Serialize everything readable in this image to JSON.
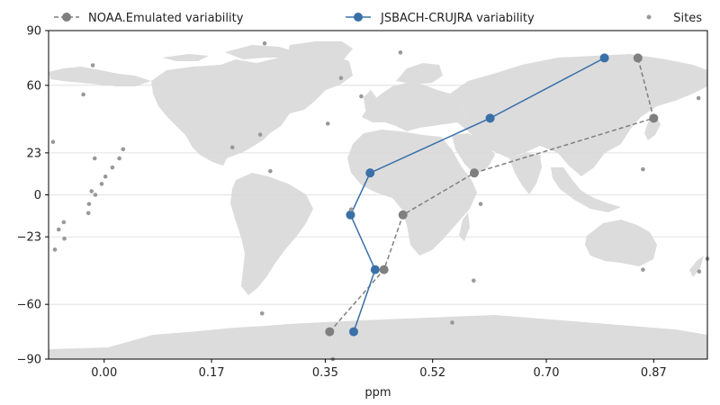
{
  "chart_data": {
    "type": "line",
    "xlabel": "ppm",
    "ylabel": "",
    "xlim": [
      -0.088,
      0.955
    ],
    "ylim": [
      -90,
      90
    ],
    "x_ticks": [
      0.0,
      0.17,
      0.35,
      0.52,
      0.7,
      0.87
    ],
    "x_tick_labels": [
      "0.00",
      "0.17",
      "0.35",
      "0.52",
      "0.70",
      "0.87"
    ],
    "y_ticks": [
      90,
      60,
      23,
      0,
      -23,
      -60,
      -90
    ],
    "y_tick_labels": [
      "90",
      "60",
      "23",
      "0",
      "−23",
      "−60",
      "−90"
    ],
    "grid": "horizontal",
    "legend_position": "top",
    "background": "world-map",
    "series": [
      {
        "name": "NOAA.Emulated variability",
        "style": "dashed",
        "color": "#7f7f7f",
        "points": [
          {
            "x": 0.357,
            "y": -75
          },
          {
            "x": 0.443,
            "y": -41
          },
          {
            "x": 0.473,
            "y": -11
          },
          {
            "x": 0.586,
            "y": 12
          },
          {
            "x": 0.87,
            "y": 42
          },
          {
            "x": 0.845,
            "y": 75
          }
        ]
      },
      {
        "name": "JSBACH-CRUJRA variability",
        "style": "solid",
        "color": "#3a70a8",
        "points": [
          {
            "x": 0.395,
            "y": -75
          },
          {
            "x": 0.429,
            "y": -41
          },
          {
            "x": 0.39,
            "y": -11
          },
          {
            "x": 0.421,
            "y": 12
          },
          {
            "x": 0.611,
            "y": 42
          },
          {
            "x": 0.792,
            "y": 75
          }
        ]
      },
      {
        "name": "Sites",
        "style": "scatter",
        "color": "#999999",
        "points": [
          {
            "x": -0.081,
            "y": 29
          },
          {
            "x": -0.078,
            "y": -30
          },
          {
            "x": -0.072,
            "y": -19
          },
          {
            "x": -0.064,
            "y": -15
          },
          {
            "x": -0.063,
            "y": -24
          },
          {
            "x": -0.033,
            "y": 55
          },
          {
            "x": -0.025,
            "y": -10
          },
          {
            "x": -0.024,
            "y": -5
          },
          {
            "x": -0.02,
            "y": 2
          },
          {
            "x": -0.018,
            "y": 71
          },
          {
            "x": -0.015,
            "y": 20
          },
          {
            "x": -0.014,
            "y": 0
          },
          {
            "x": -0.004,
            "y": 6
          },
          {
            "x": 0.002,
            "y": 10
          },
          {
            "x": 0.013,
            "y": 15
          },
          {
            "x": 0.024,
            "y": 20
          },
          {
            "x": 0.03,
            "y": 25
          },
          {
            "x": 0.203,
            "y": 26
          },
          {
            "x": 0.247,
            "y": 33
          },
          {
            "x": 0.25,
            "y": -65
          },
          {
            "x": 0.254,
            "y": 83
          },
          {
            "x": 0.263,
            "y": 13
          },
          {
            "x": 0.354,
            "y": 39
          },
          {
            "x": 0.362,
            "y": -90
          },
          {
            "x": 0.375,
            "y": 64
          },
          {
            "x": 0.391,
            "y": -8
          },
          {
            "x": 0.407,
            "y": 54
          },
          {
            "x": 0.469,
            "y": 78
          },
          {
            "x": 0.551,
            "y": -70
          },
          {
            "x": 0.585,
            "y": -47
          },
          {
            "x": 0.596,
            "y": -5
          },
          {
            "x": 0.853,
            "y": 14
          },
          {
            "x": 0.853,
            "y": -41
          },
          {
            "x": 0.941,
            "y": 53
          },
          {
            "x": 0.942,
            "y": -42
          },
          {
            "x": 0.955,
            "y": -35
          }
        ]
      }
    ]
  }
}
